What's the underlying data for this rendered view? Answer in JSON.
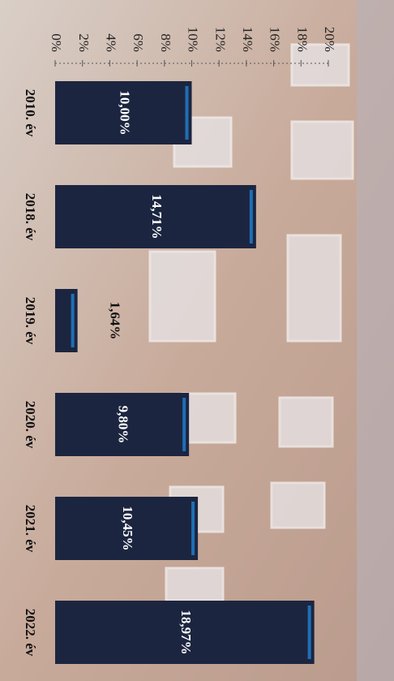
{
  "chart_data": {
    "type": "bar",
    "orientation": "horizontal",
    "categories": [
      "2010. év",
      "2018. év",
      "2019. év",
      "2020. év",
      "2021. év",
      "2022. év"
    ],
    "values": [
      10.0,
      14.71,
      1.64,
      9.8,
      10.45,
      18.97
    ],
    "value_labels": [
      "10,00%",
      "14,71%",
      "1,64%",
      "9,80%",
      "10,45%",
      "18,97%"
    ],
    "color": "#1c2540",
    "xlim": [
      0,
      20
    ],
    "xticks": [
      {
        "value": 0,
        "label": "0%"
      },
      {
        "value": 2,
        "label": "2%"
      },
      {
        "value": 4,
        "label": "4%"
      },
      {
        "value": 6,
        "label": "6%"
      },
      {
        "value": 8,
        "label": "8%"
      },
      {
        "value": 10,
        "label": "10%"
      },
      {
        "value": 12,
        "label": "12%"
      },
      {
        "value": 14,
        "label": "14%"
      },
      {
        "value": 16,
        "label": "16%"
      },
      {
        "value": 18,
        "label": "18%"
      },
      {
        "value": 20,
        "label": "20%"
      }
    ]
  }
}
